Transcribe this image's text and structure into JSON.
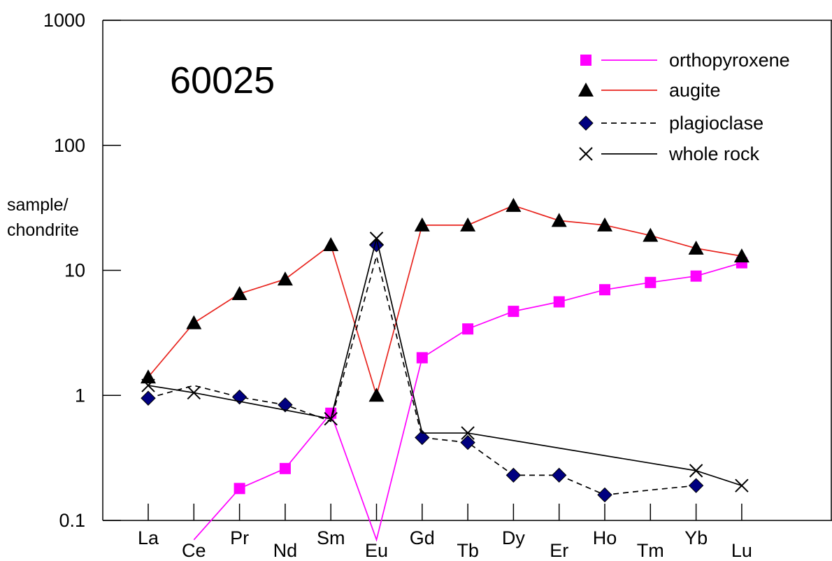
{
  "chart_data": {
    "type": "line",
    "title": "60025",
    "ylabel_lines": [
      "sample/",
      "chondrite"
    ],
    "xlabel": "",
    "y_scale": "log",
    "ylim": [
      0.1,
      1000
    ],
    "y_ticks": [
      {
        "value": 0.1,
        "label": "0.1"
      },
      {
        "value": 1,
        "label": "1"
      },
      {
        "value": 10,
        "label": "10"
      },
      {
        "value": 100,
        "label": "100"
      },
      {
        "value": 1000,
        "label": "1000"
      }
    ],
    "categories": [
      "La",
      "Ce",
      "Pr",
      "Nd",
      "Sm",
      "Eu",
      "Gd",
      "Tb",
      "Dy",
      "Er",
      "Ho",
      "Tm",
      "Yb",
      "Lu"
    ],
    "grid": false,
    "legend_position": "top-right",
    "series": [
      {
        "name": "orthopyroxene",
        "marker": "square",
        "line_style": "solid",
        "color": "#ff00ff",
        "marker_color": "#ff00ff",
        "line_values": [
          null,
          0.07,
          0.18,
          0.26,
          0.72,
          0.07,
          2.0,
          3.4,
          4.7,
          5.6,
          7.0,
          8.0,
          9.0,
          11.5
        ],
        "marker_values": [
          null,
          null,
          0.18,
          0.26,
          0.72,
          null,
          2.0,
          3.4,
          4.7,
          5.6,
          7.0,
          8.0,
          9.0,
          11.5
        ]
      },
      {
        "name": "augite",
        "marker": "triangle",
        "line_style": "solid",
        "color": "#e8251f",
        "marker_color": "#000000",
        "line_values": [
          1.4,
          3.8,
          6.5,
          8.5,
          16,
          1.0,
          23,
          23,
          33,
          25,
          23,
          19,
          15,
          13
        ],
        "marker_values": [
          1.4,
          3.8,
          6.5,
          8.5,
          16,
          1.0,
          23,
          23,
          33,
          25,
          23,
          19,
          15,
          13
        ]
      },
      {
        "name": "plagioclase",
        "marker": "diamond",
        "line_style": "dashed",
        "color": "#000000",
        "marker_color": "#000080",
        "line_values": [
          0.95,
          1.2,
          0.97,
          0.84,
          0.62,
          13,
          0.46,
          0.42,
          0.23,
          0.23,
          0.16,
          0.175,
          0.19,
          null
        ],
        "marker_values": [
          0.95,
          null,
          0.97,
          0.84,
          null,
          16,
          0.46,
          0.42,
          0.23,
          0.23,
          0.16,
          null,
          0.19,
          null
        ]
      },
      {
        "name": "whole rock",
        "marker": "x",
        "line_style": "solid",
        "color": "#000000",
        "marker_color": "#000000",
        "line_values": [
          1.2,
          1.05,
          null,
          null,
          0.65,
          18,
          0.5,
          0.5,
          null,
          null,
          null,
          null,
          0.25,
          0.19
        ],
        "marker_values": [
          1.2,
          1.05,
          null,
          null,
          0.65,
          18,
          null,
          0.5,
          null,
          null,
          null,
          null,
          0.25,
          0.19
        ]
      }
    ]
  }
}
